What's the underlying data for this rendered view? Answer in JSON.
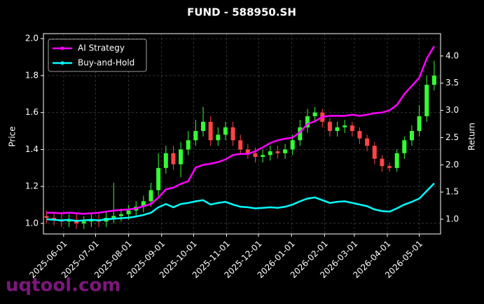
{
  "chart_data": {
    "type": "candlestick",
    "title": "FUND - 588950.SH",
    "ylabel": "Price",
    "y2label": "Return",
    "x": [
      "2025-05-16",
      "2025-05-23",
      "2025-05-30",
      "2025-06-06",
      "2025-06-13",
      "2025-06-20",
      "2025-06-27",
      "2025-07-04",
      "2025-07-11",
      "2025-07-18",
      "2025-07-25",
      "2025-08-01",
      "2025-08-08",
      "2025-08-15",
      "2025-08-22",
      "2025-08-29",
      "2025-09-05",
      "2025-09-12",
      "2025-09-19",
      "2025-09-26",
      "2025-10-03",
      "2025-10-10",
      "2025-10-17",
      "2025-10-24",
      "2025-10-31",
      "2025-11-07",
      "2025-11-14",
      "2025-11-21",
      "2025-11-28",
      "2025-12-05",
      "2025-12-12",
      "2025-12-19",
      "2025-12-26",
      "2026-01-02",
      "2026-01-09",
      "2026-01-16",
      "2026-01-23",
      "2026-01-30",
      "2026-02-06",
      "2026-02-13",
      "2026-02-20",
      "2026-02-27",
      "2026-03-06",
      "2026-03-13",
      "2026-03-20",
      "2026-03-27",
      "2026-04-03",
      "2026-04-10",
      "2026-04-17",
      "2026-04-24",
      "2026-05-01",
      "2026-05-08",
      "2026-05-15"
    ],
    "open": [
      1.04,
      1.03,
      1.02,
      1.01,
      1.02,
      1.0,
      1.01,
      1.02,
      1.01,
      1.03,
      1.04,
      1.05,
      1.07,
      1.09,
      1.12,
      1.18,
      1.3,
      1.38,
      1.32,
      1.4,
      1.45,
      1.5,
      1.55,
      1.45,
      1.48,
      1.52,
      1.45,
      1.4,
      1.38,
      1.36,
      1.37,
      1.39,
      1.38,
      1.4,
      1.45,
      1.52,
      1.58,
      1.6,
      1.55,
      1.5,
      1.52,
      1.53,
      1.5,
      1.46,
      1.42,
      1.35,
      1.31,
      1.3,
      1.38,
      1.45,
      1.5,
      1.58,
      1.75
    ],
    "high": [
      1.07,
      1.06,
      1.05,
      1.05,
      1.05,
      1.04,
      1.05,
      1.05,
      1.06,
      1.22,
      1.08,
      1.1,
      1.12,
      1.15,
      1.22,
      1.38,
      1.42,
      1.42,
      1.44,
      1.5,
      1.56,
      1.63,
      1.58,
      1.52,
      1.55,
      1.55,
      1.48,
      1.43,
      1.41,
      1.4,
      1.42,
      1.42,
      1.43,
      1.48,
      1.56,
      1.62,
      1.63,
      1.62,
      1.57,
      1.55,
      1.56,
      1.55,
      1.52,
      1.48,
      1.44,
      1.37,
      1.33,
      1.4,
      1.47,
      1.53,
      1.64,
      1.8,
      1.88
    ],
    "low": [
      1.0,
      0.99,
      0.98,
      0.98,
      0.97,
      0.97,
      0.98,
      0.98,
      0.98,
      1.0,
      1.01,
      1.02,
      1.04,
      1.06,
      1.09,
      1.15,
      1.27,
      1.29,
      1.25,
      1.37,
      1.42,
      1.47,
      1.42,
      1.42,
      1.45,
      1.42,
      1.37,
      1.35,
      1.33,
      1.33,
      1.34,
      1.35,
      1.35,
      1.37,
      1.42,
      1.49,
      1.55,
      1.52,
      1.47,
      1.47,
      1.49,
      1.47,
      1.43,
      1.39,
      1.32,
      1.28,
      1.28,
      1.28,
      1.35,
      1.42,
      1.47,
      1.55,
      1.72
    ],
    "close": [
      1.03,
      1.02,
      1.01,
      1.02,
      1.0,
      1.01,
      1.02,
      1.01,
      1.03,
      1.04,
      1.05,
      1.07,
      1.09,
      1.12,
      1.18,
      1.3,
      1.38,
      1.32,
      1.4,
      1.45,
      1.5,
      1.55,
      1.45,
      1.48,
      1.52,
      1.45,
      1.4,
      1.38,
      1.36,
      1.37,
      1.39,
      1.38,
      1.4,
      1.45,
      1.52,
      1.58,
      1.6,
      1.55,
      1.5,
      1.52,
      1.53,
      1.5,
      1.46,
      1.42,
      1.35,
      1.31,
      1.3,
      1.38,
      1.45,
      1.5,
      1.58,
      1.75,
      1.8
    ],
    "up_color": "#33ff33",
    "down_color": "#ff4444",
    "series": [
      {
        "name": "AI Strategy",
        "color": "#ff00ff",
        "axis": "y2",
        "values": [
          1.12,
          1.12,
          1.11,
          1.12,
          1.11,
          1.1,
          1.11,
          1.12,
          1.14,
          1.16,
          1.17,
          1.18,
          1.2,
          1.24,
          1.28,
          1.4,
          1.55,
          1.58,
          1.65,
          1.7,
          1.95,
          2.0,
          2.02,
          2.05,
          2.1,
          2.18,
          2.2,
          2.2,
          2.25,
          2.32,
          2.4,
          2.45,
          2.48,
          2.5,
          2.6,
          2.75,
          2.8,
          2.88,
          2.9,
          2.9,
          2.9,
          2.92,
          2.9,
          2.92,
          2.95,
          2.96,
          3.0,
          3.1,
          3.3,
          3.45,
          3.6,
          3.95,
          4.18
        ]
      },
      {
        "name": "Buy-and-Hold",
        "color": "#00ffff",
        "axis": "y2",
        "values": [
          1.0,
          0.99,
          0.98,
          0.99,
          0.97,
          0.98,
          0.99,
          0.98,
          1.0,
          1.01,
          1.02,
          1.03,
          1.05,
          1.08,
          1.12,
          1.22,
          1.28,
          1.22,
          1.28,
          1.3,
          1.33,
          1.35,
          1.27,
          1.3,
          1.32,
          1.27,
          1.23,
          1.22,
          1.2,
          1.21,
          1.22,
          1.21,
          1.23,
          1.27,
          1.33,
          1.38,
          1.4,
          1.35,
          1.3,
          1.32,
          1.33,
          1.3,
          1.27,
          1.24,
          1.18,
          1.15,
          1.14,
          1.2,
          1.27,
          1.32,
          1.38,
          1.52,
          1.66
        ]
      }
    ],
    "xlim": [
      "2025-05-13",
      "2026-05-21"
    ],
    "xticks": [
      "2025-06-01",
      "2025-07-01",
      "2025-08-01",
      "2025-09-01",
      "2025-10-01",
      "2025-11-01",
      "2025-12-01",
      "2026-01-01",
      "2026-02-01",
      "2026-03-01",
      "2026-04-01",
      "2026-05-01"
    ],
    "ylim": [
      0.943,
      2.027
    ],
    "yticks": [
      {
        "value": 1,
        "label": "1.0"
      },
      {
        "value": 1.2,
        "label": "1.2"
      },
      {
        "value": 1.4,
        "label": "1.4"
      },
      {
        "value": 1.6,
        "label": "1.6"
      },
      {
        "value": 1.8,
        "label": "1.8"
      },
      {
        "value": 2,
        "label": "2.0"
      }
    ],
    "y2lim": [
      0.73,
      4.41
    ],
    "y2ticks": [
      {
        "value": 1,
        "label": "1.0"
      },
      {
        "value": 1.5,
        "label": "1.5"
      },
      {
        "value": 2,
        "label": "2.0"
      },
      {
        "value": 2.5,
        "label": "2.5"
      },
      {
        "value": 3,
        "label": "3.0"
      },
      {
        "value": 3.5,
        "label": "3.5"
      },
      {
        "value": 4,
        "label": "4.0"
      }
    ],
    "grid": true,
    "legend": "upper left"
  },
  "watermark": "uqtool.com"
}
